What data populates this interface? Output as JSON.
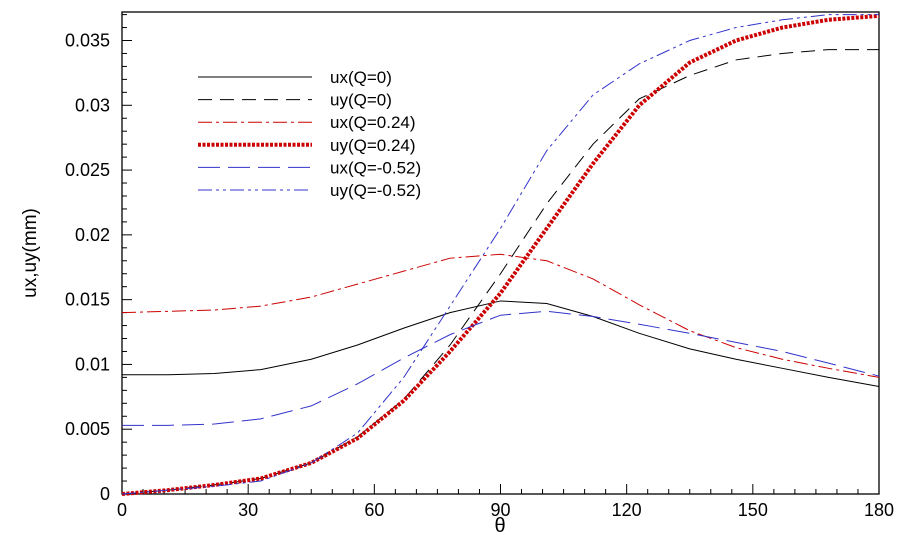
{
  "chart_data": {
    "type": "line",
    "title": "",
    "xlabel": "θ",
    "ylabel": "ux,uy(mm)",
    "xlim": [
      0,
      180
    ],
    "ylim": [
      0,
      0.0372
    ],
    "xticks": [
      "0",
      "30",
      "60",
      "90",
      "120",
      "150",
      "180"
    ],
    "yticks": [
      "0",
      "0.005",
      "0.01",
      "0.015",
      "0.02",
      "0.025",
      "0.03",
      "0.035"
    ],
    "grid": false,
    "legend_position": "top-left",
    "x": [
      0,
      11,
      22,
      33,
      45,
      56,
      67,
      78,
      90,
      101,
      112,
      123,
      135,
      146,
      157,
      168,
      180
    ],
    "series": [
      {
        "name": "ux(Q=0)",
        "color": "#000000",
        "style": "solid",
        "values": [
          0.0092,
          0.0092,
          0.0093,
          0.0096,
          0.0104,
          0.0115,
          0.0128,
          0.014,
          0.0149,
          0.0147,
          0.0137,
          0.0124,
          0.0112,
          0.0104,
          0.0097,
          0.009,
          0.0083
        ]
      },
      {
        "name": "uy(Q=0)",
        "color": "#000000",
        "style": "dashed",
        "values": [
          0,
          0.0003,
          0.0007,
          0.0012,
          0.0024,
          0.0044,
          0.0073,
          0.0115,
          0.017,
          0.0224,
          0.027,
          0.0305,
          0.0323,
          0.0335,
          0.034,
          0.0343,
          0.0343
        ]
      },
      {
        "name": "ux(Q=0.24)",
        "color": "#cc0000",
        "style": "dash-dot",
        "values": [
          0.014,
          0.0141,
          0.0142,
          0.0145,
          0.0152,
          0.0162,
          0.0172,
          0.0182,
          0.0185,
          0.018,
          0.0166,
          0.0146,
          0.0126,
          0.0113,
          0.0104,
          0.0097,
          0.009
        ]
      },
      {
        "name": "uy(Q=0.24)",
        "color": "#cc0000",
        "style": "thick-dotted",
        "values": [
          0,
          0.0003,
          0.0007,
          0.0012,
          0.0024,
          0.0043,
          0.0072,
          0.011,
          0.0155,
          0.0205,
          0.0255,
          0.03,
          0.0333,
          0.035,
          0.036,
          0.0366,
          0.0369
        ]
      },
      {
        "name": "ux(Q=-0.52)",
        "color": "#3333cc",
        "style": "long-dash",
        "values": [
          0.0053,
          0.0053,
          0.0054,
          0.0058,
          0.0068,
          0.0085,
          0.0105,
          0.0123,
          0.0138,
          0.0141,
          0.0137,
          0.0131,
          0.0124,
          0.0117,
          0.011,
          0.0101,
          0.0091
        ]
      },
      {
        "name": "uy(Q=-0.52)",
        "color": "#3333cc",
        "style": "dash-dot-dot",
        "values": [
          0,
          0.0003,
          0.0006,
          0.001,
          0.0024,
          0.0047,
          0.009,
          0.0145,
          0.0205,
          0.0265,
          0.0308,
          0.0332,
          0.035,
          0.036,
          0.0366,
          0.037,
          0.037
        ]
      }
    ]
  }
}
